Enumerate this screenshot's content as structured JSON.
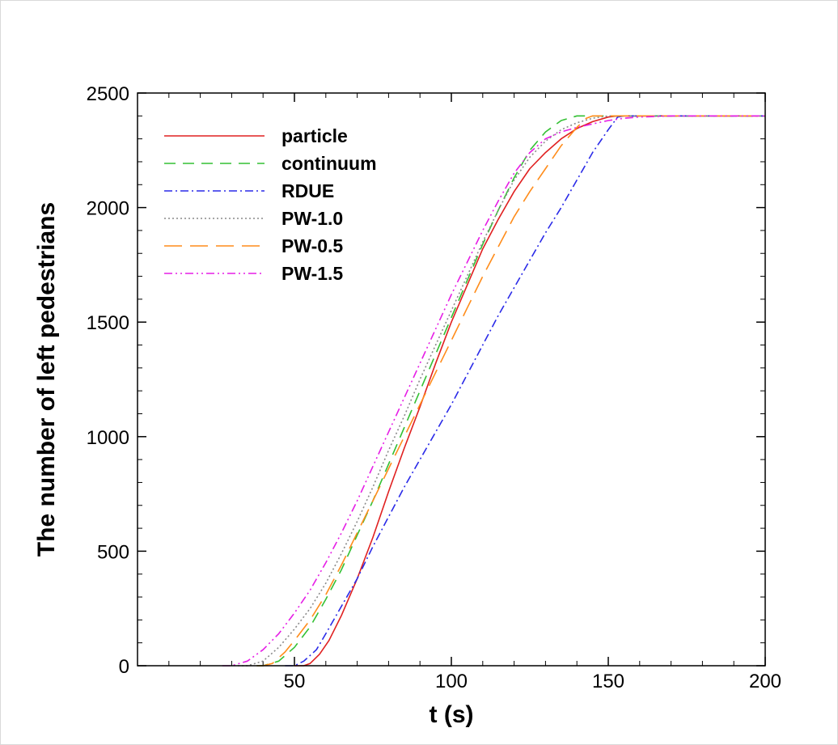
{
  "chart_data": {
    "type": "line",
    "xlabel": "t (s)",
    "ylabel": "The number of left pedestrians",
    "xlim": [
      0,
      200
    ],
    "ylim": [
      0,
      2500
    ],
    "x_ticks": [
      50,
      100,
      150,
      200
    ],
    "y_ticks": [
      0,
      500,
      1000,
      1500,
      2000,
      2500
    ],
    "x_minor_step": 10,
    "y_minor_step": 100,
    "grid": false,
    "legend_position": "top-left",
    "series": [
      {
        "name": "particle",
        "color": "#e02020",
        "dash": "",
        "points": [
          [
            50,
            0
          ],
          [
            53,
            0
          ],
          [
            55,
            10
          ],
          [
            58,
            50
          ],
          [
            61,
            110
          ],
          [
            65,
            220
          ],
          [
            70,
            380
          ],
          [
            75,
            560
          ],
          [
            80,
            760
          ],
          [
            85,
            950
          ],
          [
            90,
            1130
          ],
          [
            95,
            1320
          ],
          [
            100,
            1500
          ],
          [
            105,
            1660
          ],
          [
            110,
            1820
          ],
          [
            115,
            1950
          ],
          [
            120,
            2070
          ],
          [
            125,
            2170
          ],
          [
            130,
            2240
          ],
          [
            135,
            2300
          ],
          [
            140,
            2345
          ],
          [
            145,
            2375
          ],
          [
            150,
            2395
          ],
          [
            153,
            2400
          ],
          [
            200,
            2400
          ]
        ]
      },
      {
        "name": "continuum",
        "color": "#33c033",
        "dash": "14,9",
        "points": [
          [
            38,
            0
          ],
          [
            40,
            0
          ],
          [
            45,
            20
          ],
          [
            50,
            80
          ],
          [
            55,
            170
          ],
          [
            60,
            290
          ],
          [
            65,
            420
          ],
          [
            70,
            570
          ],
          [
            75,
            720
          ],
          [
            80,
            880
          ],
          [
            85,
            1040
          ],
          [
            90,
            1200
          ],
          [
            95,
            1360
          ],
          [
            100,
            1520
          ],
          [
            105,
            1680
          ],
          [
            110,
            1840
          ],
          [
            115,
            1990
          ],
          [
            120,
            2130
          ],
          [
            125,
            2250
          ],
          [
            130,
            2330
          ],
          [
            135,
            2380
          ],
          [
            140,
            2400
          ],
          [
            200,
            2400
          ]
        ]
      },
      {
        "name": "RDUE",
        "color": "#2a2ae8",
        "dash": "10,4,2,4",
        "points": [
          [
            47,
            0
          ],
          [
            50,
            0
          ],
          [
            53,
            20
          ],
          [
            57,
            70
          ],
          [
            60,
            140
          ],
          [
            65,
            260
          ],
          [
            70,
            380
          ],
          [
            75,
            520
          ],
          [
            80,
            650
          ],
          [
            85,
            780
          ],
          [
            90,
            900
          ],
          [
            95,
            1020
          ],
          [
            100,
            1140
          ],
          [
            105,
            1270
          ],
          [
            110,
            1400
          ],
          [
            115,
            1530
          ],
          [
            120,
            1650
          ],
          [
            125,
            1770
          ],
          [
            130,
            1890
          ],
          [
            135,
            2000
          ],
          [
            140,
            2120
          ],
          [
            145,
            2240
          ],
          [
            150,
            2340
          ],
          [
            153,
            2395
          ],
          [
            155,
            2400
          ],
          [
            200,
            2400
          ]
        ]
      },
      {
        "name": "PW-1.0",
        "color": "#8a8a8a",
        "dash": "2,3",
        "points": [
          [
            32,
            0
          ],
          [
            35,
            0
          ],
          [
            40,
            20
          ],
          [
            45,
            80
          ],
          [
            50,
            160
          ],
          [
            55,
            250
          ],
          [
            60,
            360
          ],
          [
            65,
            490
          ],
          [
            70,
            630
          ],
          [
            75,
            780
          ],
          [
            80,
            940
          ],
          [
            85,
            1090
          ],
          [
            90,
            1250
          ],
          [
            95,
            1400
          ],
          [
            100,
            1550
          ],
          [
            105,
            1700
          ],
          [
            110,
            1850
          ],
          [
            115,
            1990
          ],
          [
            120,
            2120
          ],
          [
            125,
            2220
          ],
          [
            130,
            2290
          ],
          [
            135,
            2340
          ],
          [
            140,
            2370
          ],
          [
            145,
            2390
          ],
          [
            150,
            2400
          ],
          [
            200,
            2400
          ]
        ]
      },
      {
        "name": "PW-0.5",
        "color": "#ff8c1a",
        "dash": "22,10",
        "points": [
          [
            38,
            0
          ],
          [
            40,
            0
          ],
          [
            43,
            10
          ],
          [
            47,
            60
          ],
          [
            50,
            110
          ],
          [
            55,
            200
          ],
          [
            60,
            310
          ],
          [
            65,
            440
          ],
          [
            70,
            580
          ],
          [
            75,
            720
          ],
          [
            80,
            860
          ],
          [
            85,
            1000
          ],
          [
            90,
            1140
          ],
          [
            95,
            1280
          ],
          [
            100,
            1420
          ],
          [
            105,
            1560
          ],
          [
            110,
            1700
          ],
          [
            115,
            1830
          ],
          [
            120,
            1960
          ],
          [
            125,
            2070
          ],
          [
            130,
            2170
          ],
          [
            135,
            2270
          ],
          [
            140,
            2350
          ],
          [
            143,
            2390
          ],
          [
            145,
            2400
          ],
          [
            200,
            2400
          ]
        ]
      },
      {
        "name": "PW-1.5",
        "color": "#e61ee6",
        "dash": "10,4,2,4,2,4",
        "points": [
          [
            27,
            0
          ],
          [
            30,
            0
          ],
          [
            35,
            20
          ],
          [
            40,
            70
          ],
          [
            45,
            140
          ],
          [
            50,
            230
          ],
          [
            55,
            330
          ],
          [
            60,
            450
          ],
          [
            65,
            580
          ],
          [
            70,
            720
          ],
          [
            75,
            870
          ],
          [
            80,
            1020
          ],
          [
            85,
            1170
          ],
          [
            90,
            1320
          ],
          [
            95,
            1470
          ],
          [
            100,
            1620
          ],
          [
            105,
            1760
          ],
          [
            110,
            1900
          ],
          [
            115,
            2030
          ],
          [
            120,
            2150
          ],
          [
            125,
            2240
          ],
          [
            130,
            2300
          ],
          [
            135,
            2330
          ],
          [
            140,
            2350
          ],
          [
            145,
            2365
          ],
          [
            150,
            2380
          ],
          [
            155,
            2390
          ],
          [
            160,
            2395
          ],
          [
            170,
            2400
          ],
          [
            200,
            2400
          ]
        ]
      }
    ]
  }
}
